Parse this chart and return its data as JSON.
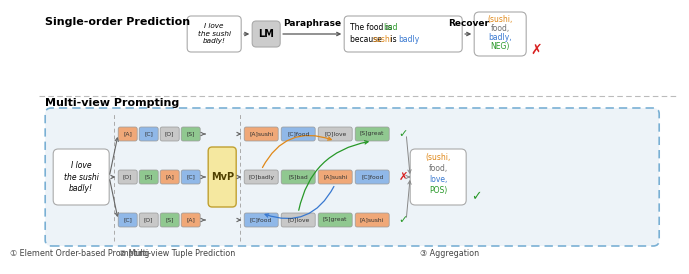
{
  "bg_color": "#ffffff",
  "dashed_border": "#7ab0d4",
  "mvp_box": "#f5e8a0",
  "color_A": "#f0a878",
  "color_C": "#90b8e8",
  "color_O": "#c8c8c8",
  "color_S": "#90c890",
  "color_orange": "#e08818",
  "color_gray": "#707070",
  "color_blue": "#3878d0",
  "color_green": "#289828",
  "color_red": "#d82020",
  "row1_tags": [
    "[A]",
    "[C]",
    "[O]",
    "[S]"
  ],
  "row2_tags": [
    "[O]",
    "[S]",
    "[A]",
    "[C]"
  ],
  "row3_tags": [
    "[C]",
    "[O]",
    "[S]",
    "[A]"
  ],
  "row1_outputs": [
    "[A]sushi",
    "[C]food",
    "[O]love",
    "[S]great"
  ],
  "row2_outputs": [
    "[O]badly",
    "[S]bad",
    "[A]sushi",
    "[C]food"
  ],
  "row3_outputs": [
    "[C]food",
    "[O]love",
    "[S]great",
    "[A]sushi"
  ],
  "footer1": "① Element Order-based Prompting",
  "footer2": "② Multi-view Tuple Prediction",
  "footer3": "③ Aggregation"
}
